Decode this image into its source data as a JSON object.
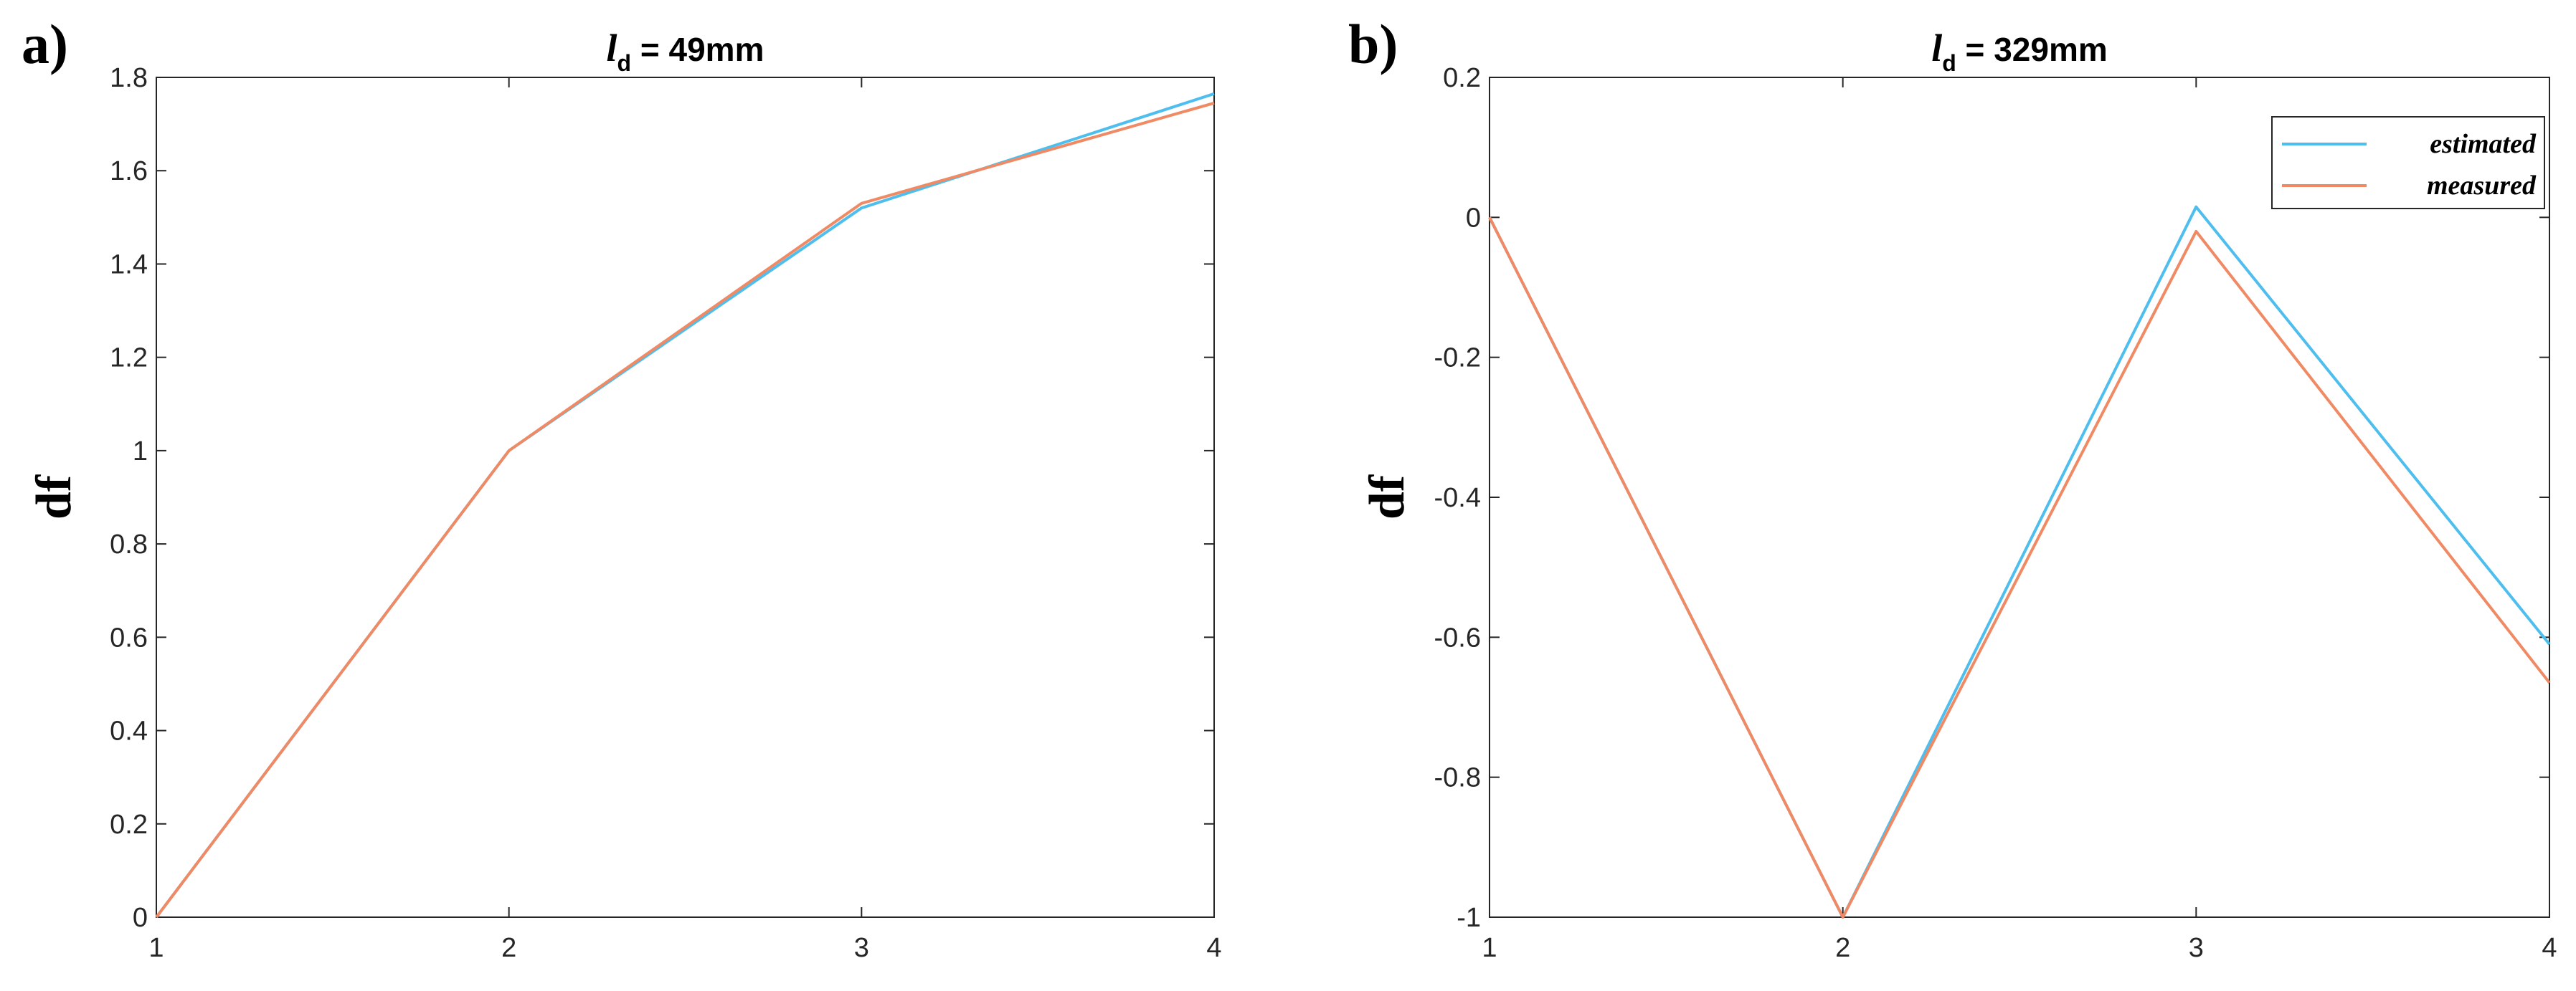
{
  "chart_data": [
    {
      "type": "line",
      "panel_label": "a)",
      "title_var": "l",
      "title_sub": "d",
      "title_text": " = 49mm",
      "ylabel": "df",
      "xlabel": "",
      "x": [
        1,
        2,
        3,
        4
      ],
      "xticks": [
        "1",
        "2",
        "3",
        "4"
      ],
      "yticks": [
        "0",
        "0.2",
        "0.4",
        "0.6",
        "0.8",
        "1",
        "1.2",
        "1.4",
        "1.6",
        "1.8"
      ],
      "xlim": [
        1,
        4
      ],
      "ylim": [
        0,
        1.8
      ],
      "legend": false,
      "series": [
        {
          "key": "estimated",
          "values": [
            0,
            1.0,
            1.52,
            1.765
          ],
          "color": "#4dbeee"
        },
        {
          "key": "measured",
          "values": [
            0,
            1.0,
            1.53,
            1.745
          ],
          "color": "#f08a64"
        }
      ]
    },
    {
      "type": "line",
      "panel_label": "b)",
      "title_var": "l",
      "title_sub": "d",
      "title_text": " = 329mm",
      "ylabel": "df",
      "xlabel": "",
      "x": [
        1,
        2,
        3,
        4
      ],
      "xticks": [
        "1",
        "2",
        "3",
        "4"
      ],
      "yticks": [
        "-1",
        "-0.8",
        "-0.6",
        "-0.4",
        "-0.2",
        "0",
        "0.2"
      ],
      "xlim": [
        1,
        4
      ],
      "ylim": [
        -1,
        0.2
      ],
      "legend": true,
      "legend_position": "top-right",
      "series": [
        {
          "name": "estimated",
          "values": [
            0,
            -1.0,
            0.015,
            -0.61
          ],
          "color": "#4dbeee"
        },
        {
          "name": "measured",
          "values": [
            0,
            -1.0,
            -0.02,
            -0.665
          ],
          "color": "#f08a64"
        }
      ]
    }
  ]
}
